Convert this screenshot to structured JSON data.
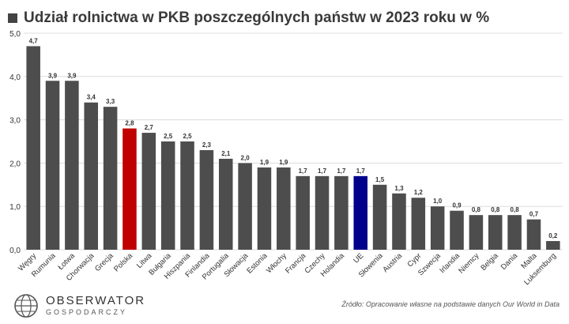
{
  "title": "Udział rolnictwa w PKB poszczególnych państw w 2023 roku w %",
  "source": "Źródło: Opracowanie własne na podstawie danych Our World in Data",
  "logo": {
    "name": "OBSERWATOR",
    "sub": "GOSPODARCZY"
  },
  "colors": {
    "default": "#4d4d4d",
    "highlight_pl": "#c00000",
    "highlight_eu": "#00008b",
    "grid": "#dcdcdc",
    "text": "#333333"
  },
  "chart_data": {
    "type": "bar",
    "title": "Udział rolnictwa w PKB poszczególnych państw w 2023 roku w %",
    "xlabel": "",
    "ylabel": "",
    "ylim": [
      0,
      5
    ],
    "yticks": [
      "0,0",
      "1,0",
      "2,0",
      "3,0",
      "4,0",
      "5,0"
    ],
    "grid": true,
    "categories": [
      "Węgry",
      "Rumunia",
      "Łotwa",
      "Chorwacja",
      "Grecja",
      "Polska",
      "Litwa",
      "Bułgaria",
      "Hiszpania",
      "Finlandia",
      "Portugalia",
      "Słowacja",
      "Estonia",
      "Włochy",
      "Francja",
      "Czechy",
      "Holandia",
      "UE",
      "Słowenia",
      "Austria",
      "Cypr",
      "Szwecja",
      "Irlandia",
      "Niemcy",
      "Belgia",
      "Dania",
      "Malta",
      "Luksemburg"
    ],
    "values": [
      4.7,
      3.9,
      3.9,
      3.4,
      3.3,
      2.8,
      2.7,
      2.5,
      2.5,
      2.3,
      2.1,
      2.0,
      1.9,
      1.9,
      1.7,
      1.7,
      1.7,
      1.7,
      1.5,
      1.3,
      1.2,
      1.0,
      0.9,
      0.8,
      0.8,
      0.8,
      0.7,
      0.2
    ],
    "value_labels": [
      "4,7",
      "3,9",
      "3,9",
      "3,4",
      "3,3",
      "2,8",
      "2,7",
      "2,5",
      "2,5",
      "2,3",
      "2,1",
      "2,0",
      "1,9",
      "1,9",
      "1,7",
      "1,7",
      "1,7",
      "1,7",
      "1,5",
      "1,3",
      "1,2",
      "1,0",
      "0,9",
      "0,8",
      "0,8",
      "0,8",
      "0,7",
      "0,2"
    ],
    "highlights": {
      "Polska": "highlight_pl",
      "UE": "highlight_eu"
    }
  }
}
